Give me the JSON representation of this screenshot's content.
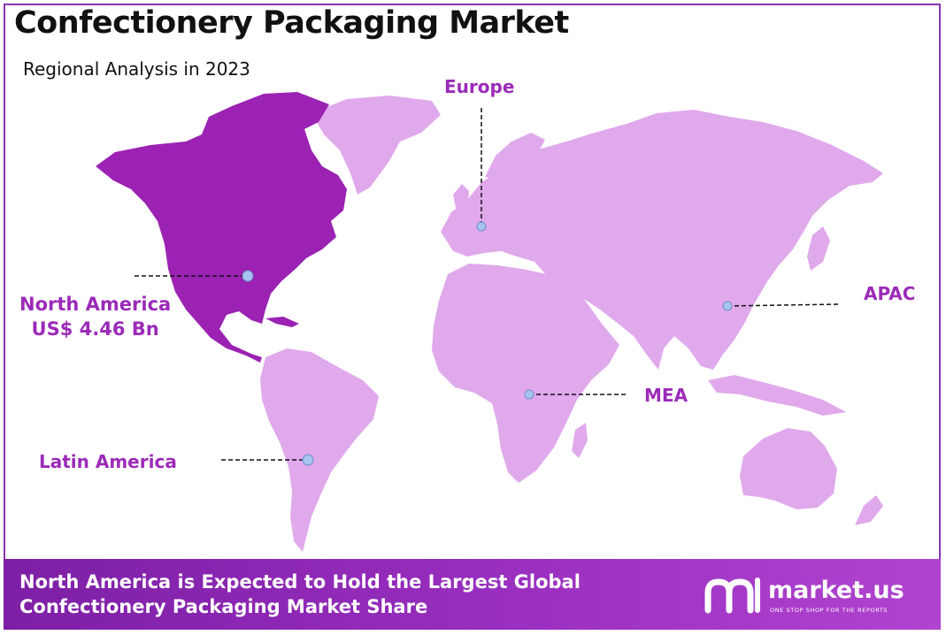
{
  "header": {
    "title": "Confectionery Packaging Market",
    "subtitle": "Regional Analysis in 2023"
  },
  "colors": {
    "highlight_region": "#9b22b3",
    "other_regions": "#e0a9ec",
    "label": "#9b2bb8",
    "marker": "#a8c3f0",
    "footer": "#8a2cb5"
  },
  "regions": {
    "north_america": {
      "name": "North America",
      "value": "US$ 4.46 Bn"
    },
    "europe": {
      "name": "Europe"
    },
    "apac": {
      "name": "APAC"
    },
    "mea": {
      "name": "MEA"
    },
    "latin_america": {
      "name": "Latin America"
    }
  },
  "footer": {
    "line1": "North America is Expected to Hold the Largest Global",
    "line2": "Confectionery Packaging Market Share"
  },
  "brand": {
    "name": "market.us",
    "tagline": "ONE STOP SHOP FOR THE REPORTS",
    "logo_icon": "market-us-logo-icon"
  }
}
